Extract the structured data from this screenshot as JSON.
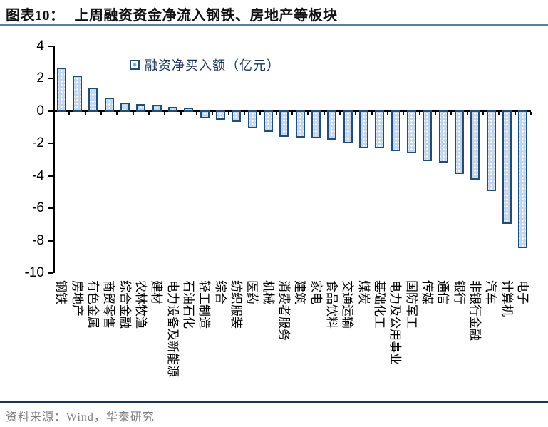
{
  "header": {
    "title_prefix": "图表10：",
    "title_text": "上周融资资金净流入钢铁、房地产等板块"
  },
  "colors": {
    "bar_border": "#1F4E79",
    "bar_fill": "#C3D5EA",
    "title_rule": "#5B7EA6",
    "footer_rule": "#17365D",
    "legend_text": "#17365D",
    "source_text": "#7F7F7F",
    "axis": "#000000"
  },
  "chart_data": {
    "type": "bar",
    "title": "上周融资资金净流入钢铁、房地产等板块",
    "legend": [
      "融资净买入额（亿元）"
    ],
    "legend_position": "top-left-of-plot",
    "unit": "亿元",
    "grid": false,
    "ylim": [
      -10,
      4
    ],
    "yticks": [
      4,
      2,
      0,
      -2,
      -4,
      -6,
      -8,
      -10
    ],
    "xlabel": "",
    "ylabel": "",
    "categories": [
      "钢铁",
      "房地产",
      "有色金属",
      "商贸零售",
      "综合金融",
      "农林牧渔",
      "建材",
      "电力设备及新能源",
      "石油石化",
      "轻工制造",
      "综合",
      "纺织服装",
      "医药",
      "机械",
      "消费者服务",
      "建筑",
      "家电",
      "食品饮料",
      "交通运输",
      "煤炭",
      "基础化工",
      "电力及公用事业",
      "国防军工",
      "传媒",
      "通信",
      "银行",
      "非银行金融",
      "汽车",
      "计算机",
      "电子"
    ],
    "values": [
      2.5,
      2.0,
      1.25,
      0.65,
      0.35,
      0.25,
      0.2,
      0.1,
      0.05,
      -0.25,
      -0.35,
      -0.5,
      -0.9,
      -1.1,
      -1.4,
      -1.45,
      -1.5,
      -1.6,
      -1.8,
      -2.1,
      -2.1,
      -2.3,
      -2.45,
      -2.9,
      -3.0,
      -3.7,
      -4.05,
      -4.75,
      -6.8,
      -8.3
    ]
  },
  "footer": {
    "source": "资料来源：Wind，华泰研究"
  }
}
